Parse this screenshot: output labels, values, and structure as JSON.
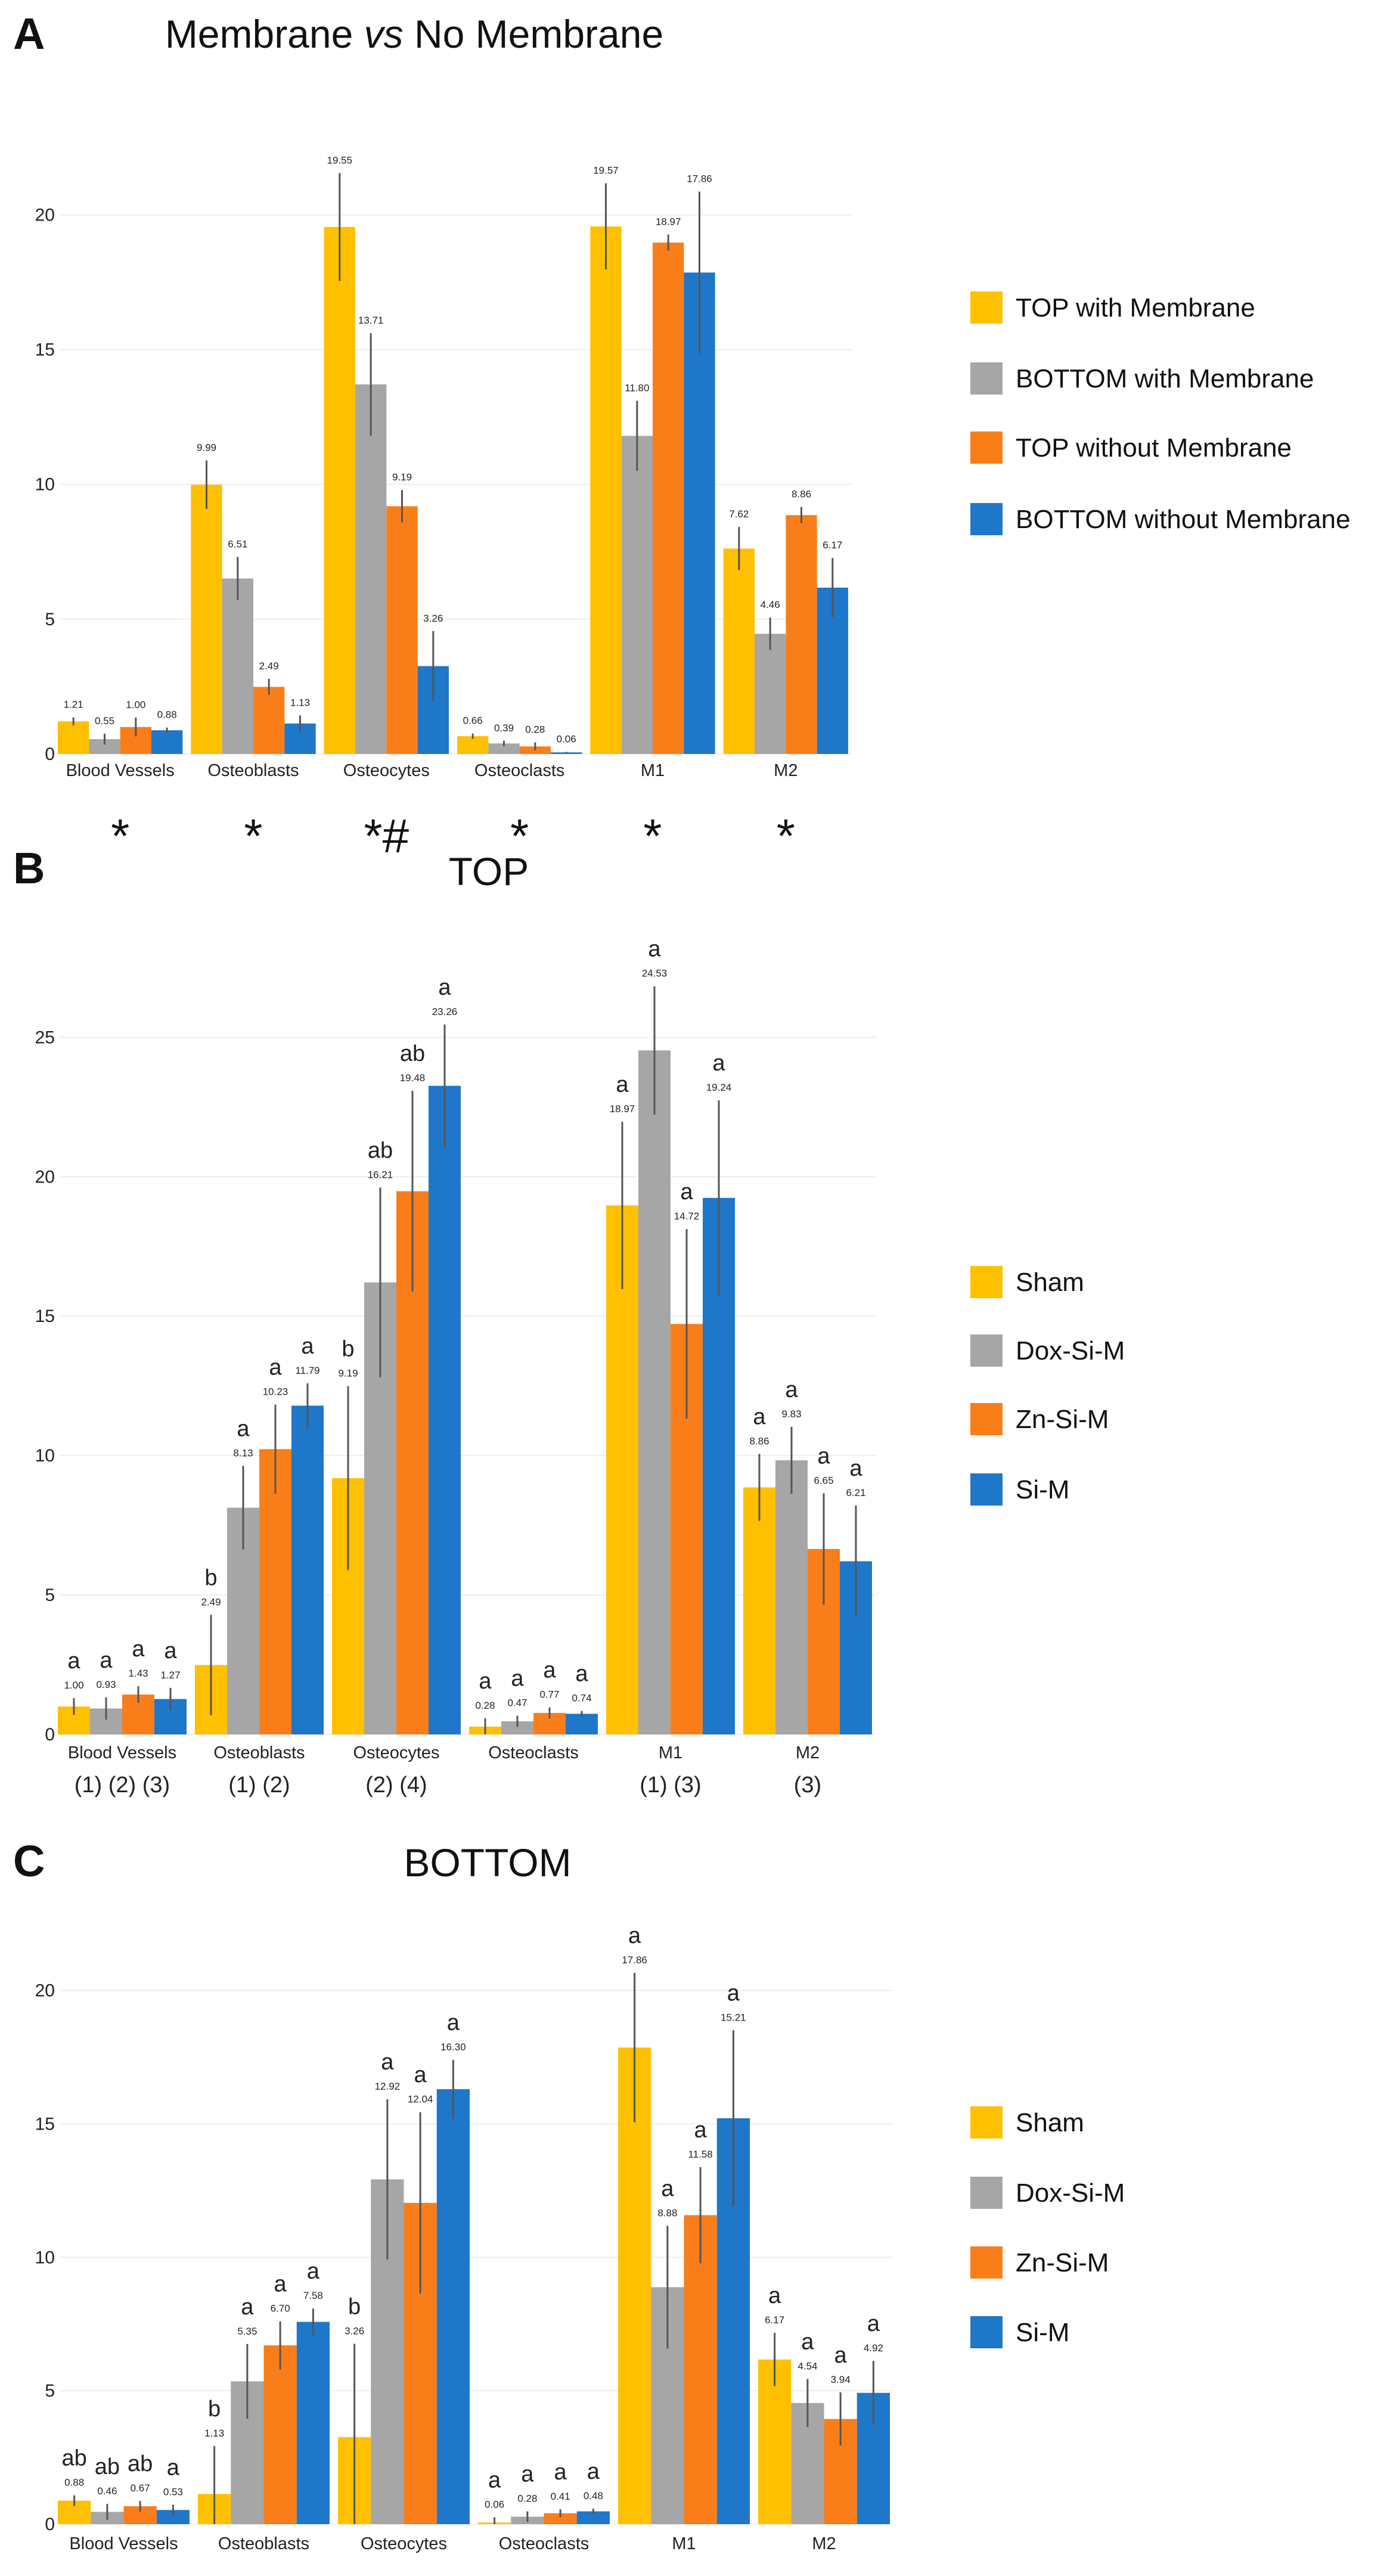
{
  "colors": {
    "sham": "#FFC000",
    "dox": "#A6A6A6",
    "zn": "#F97E1A",
    "si": "#1F77C9"
  },
  "chart_data": [
    {
      "type": "bar",
      "panel": "A",
      "title_parts": [
        "Membrane ",
        "vs",
        " No Membrane"
      ],
      "categories": [
        "Blood Vessels",
        "Osteoblasts",
        "Osteocytes",
        "Osteoclasts",
        "M1",
        "M2"
      ],
      "ylim": [
        0,
        22
      ],
      "yticks": [
        0,
        5,
        10,
        15,
        20
      ],
      "series": [
        {
          "name": "TOP with Membrane",
          "color": "#FFC000",
          "values": [
            1.21,
            9.99,
            19.55,
            0.66,
            19.57,
            7.62
          ],
          "labels": [
            "1.21",
            "9.99",
            "19.55",
            "0.66",
            "19.57",
            "7.62"
          ],
          "errors": [
            0.15,
            0.9,
            2.0,
            0.1,
            1.6,
            0.8
          ]
        },
        {
          "name": "BOTTOM with Membrane",
          "color": "#A6A6A6",
          "values": [
            0.55,
            6.51,
            13.71,
            0.39,
            11.8,
            4.46
          ],
          "labels": [
            "0.55",
            "6.51",
            "13.71",
            "0.39",
            "11.80",
            "4.46"
          ],
          "errors": [
            0.2,
            0.8,
            1.9,
            0.1,
            1.3,
            0.6
          ]
        },
        {
          "name": "TOP without Membrane",
          "color": "#F97E1A",
          "values": [
            1.0,
            2.49,
            9.19,
            0.28,
            18.97,
            8.86
          ],
          "labels": [
            "1.00",
            "2.49",
            "9.19",
            "0.28",
            "18.97",
            "8.86"
          ],
          "errors": [
            0.35,
            0.3,
            0.6,
            0.15,
            0.3,
            0.3
          ]
        },
        {
          "name": "BOTTOM without Membrane",
          "color": "#1F77C9",
          "values": [
            0.88,
            1.13,
            3.26,
            0.06,
            17.86,
            6.17
          ],
          "labels": [
            "0.88",
            "1.13",
            "3.26",
            "0.06",
            "17.86",
            "6.17"
          ],
          "errors": [
            0.1,
            0.3,
            1.3,
            0.02,
            3.0,
            1.1
          ]
        }
      ],
      "significance_marks": [
        "*",
        "*",
        "*#",
        "*",
        "*",
        "*"
      ]
    },
    {
      "type": "bar",
      "panel": "B",
      "title": "TOP",
      "categories": [
        "Blood Vessels",
        "Osteoblasts",
        "Osteocytes",
        "Osteoclasts",
        "M1",
        "M2"
      ],
      "ylim": [
        0,
        28
      ],
      "yticks": [
        0,
        5,
        10,
        15,
        20,
        25
      ],
      "series": [
        {
          "name": "Sham",
          "color": "#FFC000",
          "values": [
            1.0,
            2.49,
            9.19,
            0.28,
            18.97,
            8.86
          ],
          "labels": [
            "1.00",
            "2.49",
            "9.19",
            "0.28",
            "18.97",
            "8.86"
          ],
          "errors": [
            0.3,
            1.8,
            3.3,
            0.3,
            3.0,
            1.2
          ],
          "letters": [
            "a",
            "b",
            "b",
            "a",
            "a",
            "a"
          ]
        },
        {
          "name": "Dox-Si-M",
          "color": "#A6A6A6",
          "values": [
            0.93,
            8.13,
            16.21,
            0.47,
            24.53,
            9.83
          ],
          "labels": [
            "0.93",
            "8.13",
            "16.21",
            "0.47",
            "24.53",
            "9.83"
          ],
          "errors": [
            0.4,
            1.5,
            3.4,
            0.2,
            2.3,
            1.2
          ],
          "letters": [
            "a",
            "a",
            "ab",
            "a",
            "a",
            "a"
          ]
        },
        {
          "name": "Zn-Si-M",
          "color": "#F97E1A",
          "values": [
            1.43,
            10.23,
            19.48,
            0.77,
            14.72,
            6.65
          ],
          "labels": [
            "1.43",
            "10.23",
            "19.48",
            "0.77",
            "14.72",
            "6.65"
          ],
          "errors": [
            0.3,
            1.6,
            3.6,
            0.2,
            3.4,
            2.0
          ],
          "letters": [
            "a",
            "a",
            "ab",
            "a",
            "a",
            "a"
          ]
        },
        {
          "name": "Si-M",
          "color": "#1F77C9",
          "values": [
            1.27,
            11.79,
            23.26,
            0.74,
            19.24,
            6.21
          ],
          "labels": [
            "1.27",
            "11.79",
            "23.26",
            "0.74",
            "19.24",
            "6.21"
          ],
          "errors": [
            0.4,
            0.8,
            2.2,
            0.1,
            3.5,
            2.0
          ],
          "letters": [
            "a",
            "a",
            "a",
            "a",
            "a",
            "a"
          ]
        }
      ],
      "group_notes": [
        "(1) (2) (3)",
        "(1) (2)",
        "(2) (4)",
        "",
        "(1) (3)",
        "(3)"
      ]
    },
    {
      "type": "bar",
      "panel": "C",
      "title": "BOTTOM",
      "categories": [
        "Blood Vessels",
        "Osteoblasts",
        "Osteocytes",
        "Osteoclasts",
        "M1",
        "M2"
      ],
      "ylim": [
        0,
        22
      ],
      "yticks": [
        0,
        5,
        10,
        15,
        20
      ],
      "series": [
        {
          "name": "Sham",
          "color": "#FFC000",
          "values": [
            0.88,
            1.13,
            3.26,
            0.06,
            17.86,
            6.17
          ],
          "labels": [
            "0.88",
            "1.13",
            "3.26",
            "0.06",
            "17.86",
            "6.17"
          ],
          "errors": [
            0.2,
            1.8,
            3.5,
            0.2,
            2.8,
            1.0
          ],
          "letters": [
            "ab",
            "b",
            "b",
            "a",
            "a",
            "a"
          ]
        },
        {
          "name": "Dox-Si-M",
          "color": "#A6A6A6",
          "values": [
            0.46,
            5.35,
            12.92,
            0.28,
            8.88,
            4.54
          ],
          "labels": [
            "0.46",
            "5.35",
            "12.92",
            "0.28",
            "8.88",
            "4.54"
          ],
          "errors": [
            0.3,
            1.4,
            3.0,
            0.2,
            2.3,
            0.9
          ],
          "letters": [
            "ab",
            "a",
            "a",
            "a",
            "a",
            "a"
          ]
        },
        {
          "name": "Zn-Si-M",
          "color": "#F97E1A",
          "values": [
            0.67,
            6.7,
            12.04,
            0.41,
            11.58,
            3.94
          ],
          "labels": [
            "0.67",
            "6.70",
            "12.04",
            "0.41",
            "11.58",
            "3.94"
          ],
          "errors": [
            0.2,
            0.9,
            3.4,
            0.15,
            1.8,
            1.0
          ],
          "letters": [
            "ab",
            "a",
            "a",
            "a",
            "a",
            "a"
          ]
        },
        {
          "name": "Si-M",
          "color": "#1F77C9",
          "values": [
            0.53,
            7.58,
            16.3,
            0.48,
            15.21,
            4.92
          ],
          "labels": [
            "0.53",
            "7.58",
            "16.30",
            "0.48",
            "15.21",
            "4.92"
          ],
          "errors": [
            0.2,
            0.5,
            1.1,
            0.1,
            3.3,
            1.2
          ],
          "letters": [
            "a",
            "a",
            "a",
            "a",
            "a",
            "a"
          ]
        }
      ]
    }
  ]
}
